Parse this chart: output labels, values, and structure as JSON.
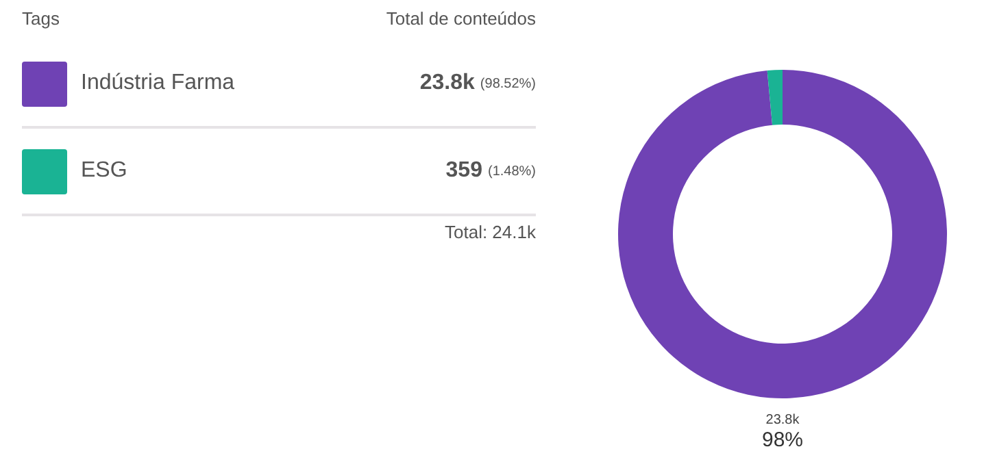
{
  "chart_data": {
    "type": "donut",
    "legend_title": "Tags",
    "legend": "left",
    "categories": [
      "Indústria Farma",
      "ESG"
    ],
    "values": [
      23800,
      359
    ],
    "colors": [
      "#6f42b4",
      "#1ab394"
    ],
    "value_labels": [
      "23.8k (98.52%)",
      "359 (1.48%)"
    ],
    "annotations": [
      "Total de conteúdos",
      "Total: 24.1k",
      "23.8k",
      "98%"
    ]
  }
}
